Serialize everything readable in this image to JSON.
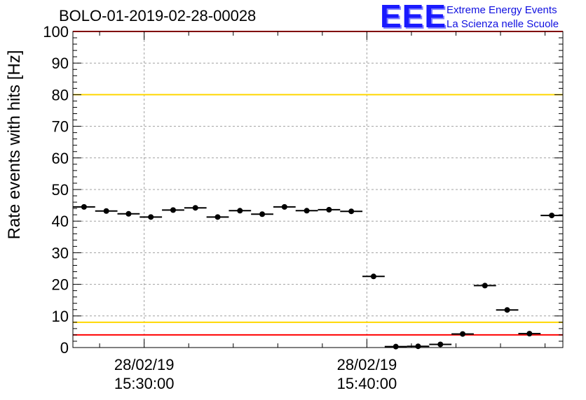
{
  "title": "BOLO-01-2019-02-28-00028",
  "logo": {
    "mark": "EEE",
    "line1": "Extreme Energy Events",
    "line2": "La Scienza nelle Scuole"
  },
  "colors": {
    "red_threshold": "#ff0000",
    "yellow_threshold": "#ffd700",
    "marker": "#000000",
    "grid": "#a0a0a0"
  },
  "chart_data": {
    "type": "scatter",
    "title": "BOLO-01-2019-02-28-00028",
    "ylabel": "Rate events with hits [Hz]",
    "xlabel": "",
    "ylim": [
      0,
      100
    ],
    "xlim_minutes": [
      26.8,
      48.8
    ],
    "yticks": [
      0,
      10,
      20,
      30,
      40,
      50,
      60,
      70,
      80,
      90,
      100
    ],
    "xticks": [
      {
        "minute": 30,
        "date": "28/02/19",
        "time": "15:30:00"
      },
      {
        "minute": 40,
        "date": "28/02/19",
        "time": "15:40:00"
      }
    ],
    "x_time_origin": "28/02/19 15:00:00",
    "grid": true,
    "bin_minutes": 1.0,
    "series": [
      {
        "points": [
          {
            "minute": 27.3,
            "value": 44.5
          },
          {
            "minute": 28.3,
            "value": 43.2
          },
          {
            "minute": 29.3,
            "value": 42.3
          },
          {
            "minute": 30.3,
            "value": 41.3
          },
          {
            "minute": 31.3,
            "value": 43.5
          },
          {
            "minute": 32.3,
            "value": 44.2
          },
          {
            "minute": 33.3,
            "value": 41.3
          },
          {
            "minute": 34.3,
            "value": 43.3
          },
          {
            "minute": 35.3,
            "value": 42.2
          },
          {
            "minute": 36.3,
            "value": 44.5
          },
          {
            "minute": 37.3,
            "value": 43.3
          },
          {
            "minute": 38.3,
            "value": 43.6
          },
          {
            "minute": 39.3,
            "value": 43.1
          },
          {
            "minute": 40.3,
            "value": 22.5
          },
          {
            "minute": 41.3,
            "value": 0.3
          },
          {
            "minute": 42.3,
            "value": 0.4
          },
          {
            "minute": 43.3,
            "value": 1.0
          },
          {
            "minute": 44.3,
            "value": 4.3
          },
          {
            "minute": 45.3,
            "value": 19.6
          },
          {
            "minute": 46.3,
            "value": 11.9
          },
          {
            "minute": 47.3,
            "value": 4.4
          },
          {
            "minute": 48.3,
            "value": 41.8
          }
        ]
      }
    ],
    "reference_lines": [
      {
        "value": 100,
        "color": "red"
      },
      {
        "value": 80,
        "color": "yellow"
      },
      {
        "value": 8,
        "color": "yellow"
      },
      {
        "value": 4,
        "color": "red"
      }
    ]
  }
}
